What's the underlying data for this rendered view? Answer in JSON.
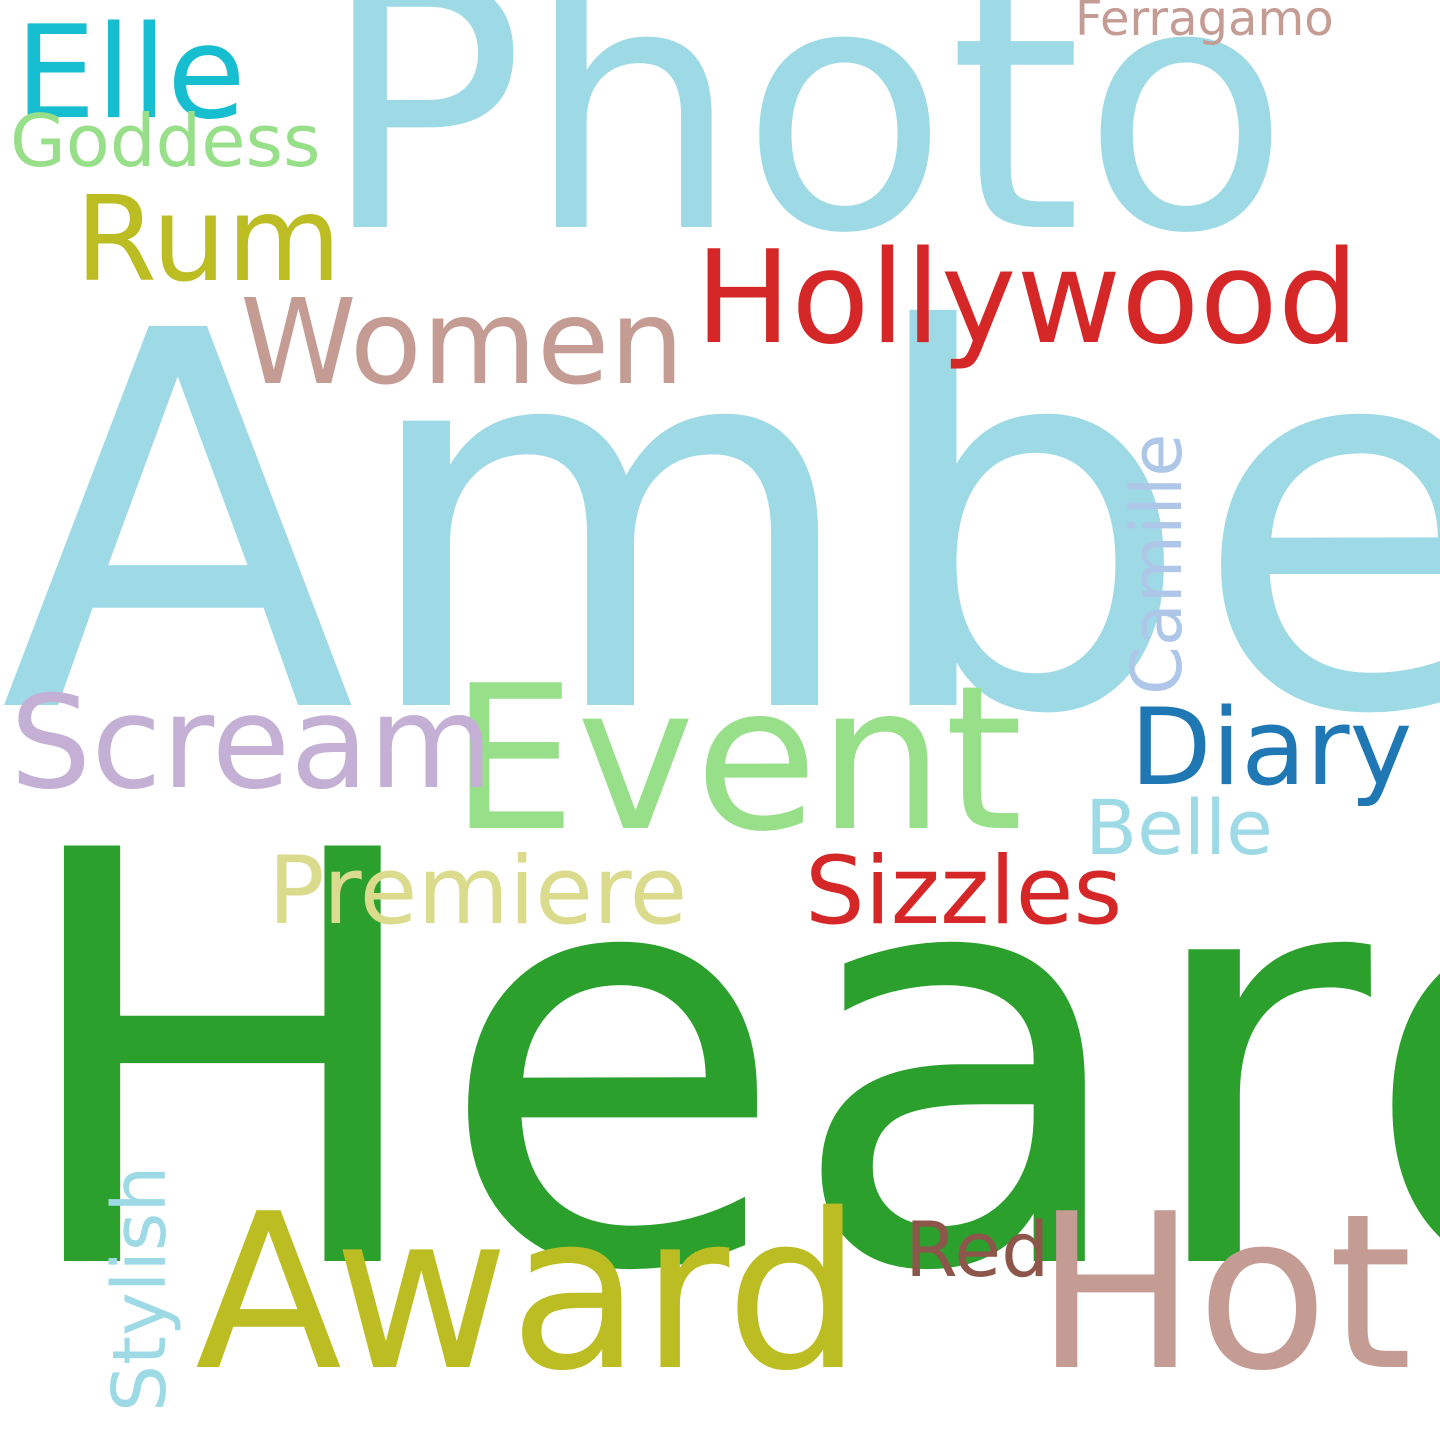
{
  "cloud": {
    "background": "#ffffff",
    "words": {
      "heard": {
        "text": "Heard",
        "color": "#2ca02c"
      },
      "amber": {
        "text": "Amber",
        "color": "#9edae5"
      },
      "photo": {
        "text": "Photo",
        "color": "#9edae5"
      },
      "event": {
        "text": "Event",
        "color": "#98df8a"
      },
      "award": {
        "text": "Award",
        "color": "#bcbd22"
      },
      "hot": {
        "text": "Hot",
        "color": "#c49c94"
      },
      "hollywood": {
        "text": "Hollywood",
        "color": "#d62728"
      },
      "women": {
        "text": "Women",
        "color": "#c49c94"
      },
      "scream": {
        "text": "Scream",
        "color": "#c5b0d5"
      },
      "elle": {
        "text": "Elle",
        "color": "#17becf"
      },
      "rum": {
        "text": "Rum",
        "color": "#bcbd22"
      },
      "goddess": {
        "text": "Goddess",
        "color": "#98df8a"
      },
      "ferragamo": {
        "text": "Ferragamo",
        "color": "#c49c94"
      },
      "diary": {
        "text": "Diary",
        "color": "#1f77b4"
      },
      "belle": {
        "text": "Belle",
        "color": "#9edae5"
      },
      "premiere": {
        "text": "Premiere",
        "color": "#dbdb8d"
      },
      "sizzles": {
        "text": "Sizzles",
        "color": "#d62728"
      },
      "red": {
        "text": "Red",
        "color": "#8c564b"
      },
      "camille": {
        "text": "Camille",
        "color": "#aec7e8"
      },
      "stylish": {
        "text": "Stylish",
        "color": "#9edae5"
      }
    }
  }
}
